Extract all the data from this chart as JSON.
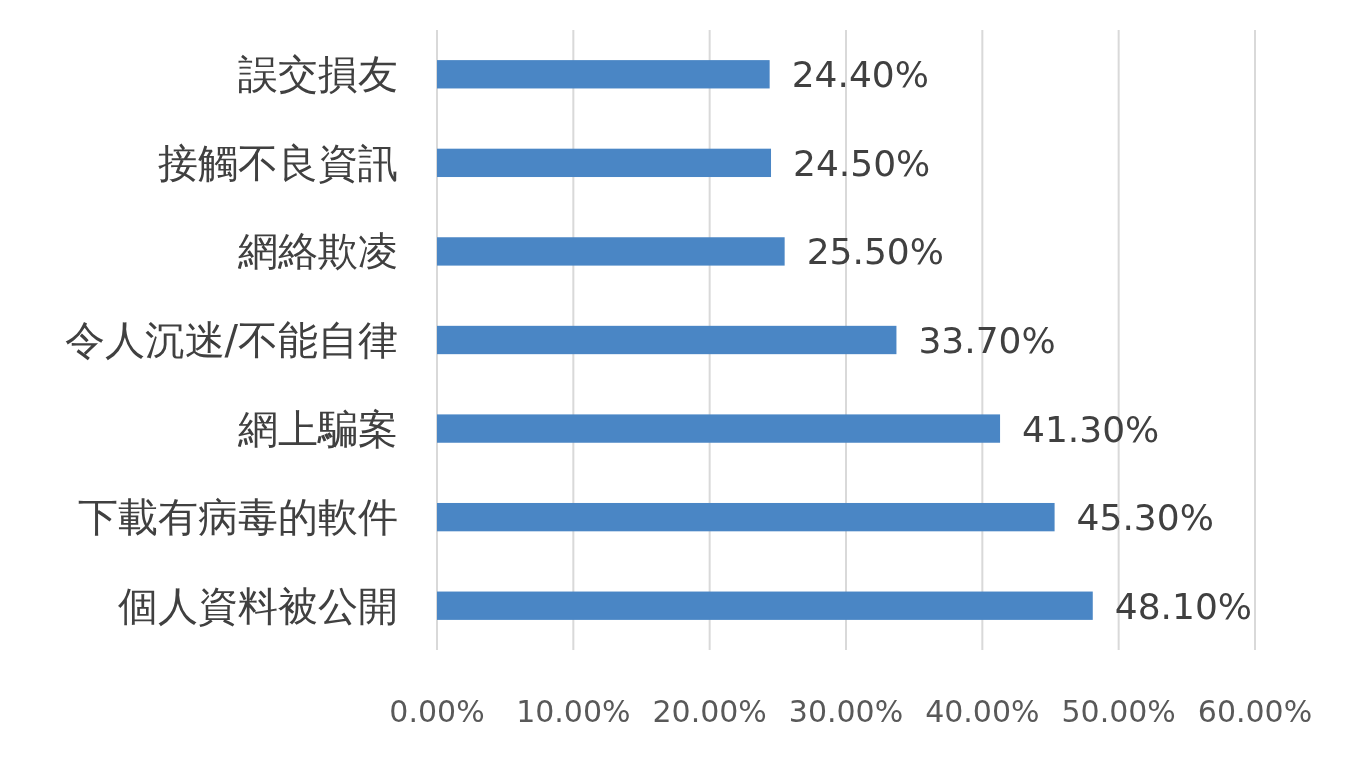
{
  "chart_data": {
    "type": "bar",
    "orientation": "horizontal",
    "categories": [
      "誤交損友",
      "接觸不良資訊",
      "網絡欺凌",
      "令人沉迷/不能自律",
      "網上騙案",
      "下載有病毒的軟件",
      "個人資料被公開"
    ],
    "values": [
      24.4,
      24.5,
      25.5,
      33.7,
      41.3,
      45.3,
      48.1
    ],
    "value_labels": [
      "24.40%",
      "24.50%",
      "25.50%",
      "33.70%",
      "41.30%",
      "45.30%",
      "48.10%"
    ],
    "color": "#4a86c5",
    "xlim": [
      0,
      60
    ],
    "xticks": [
      {
        "value": 0,
        "label": "0.00%"
      },
      {
        "value": 10,
        "label": "10.00%"
      },
      {
        "value": 20,
        "label": "20.00%"
      },
      {
        "value": 30,
        "label": "30.00%"
      },
      {
        "value": 40,
        "label": "40.00%"
      },
      {
        "value": 50,
        "label": "50.00%"
      },
      {
        "value": 60,
        "label": "60.00%"
      }
    ],
    "grid": "x"
  }
}
